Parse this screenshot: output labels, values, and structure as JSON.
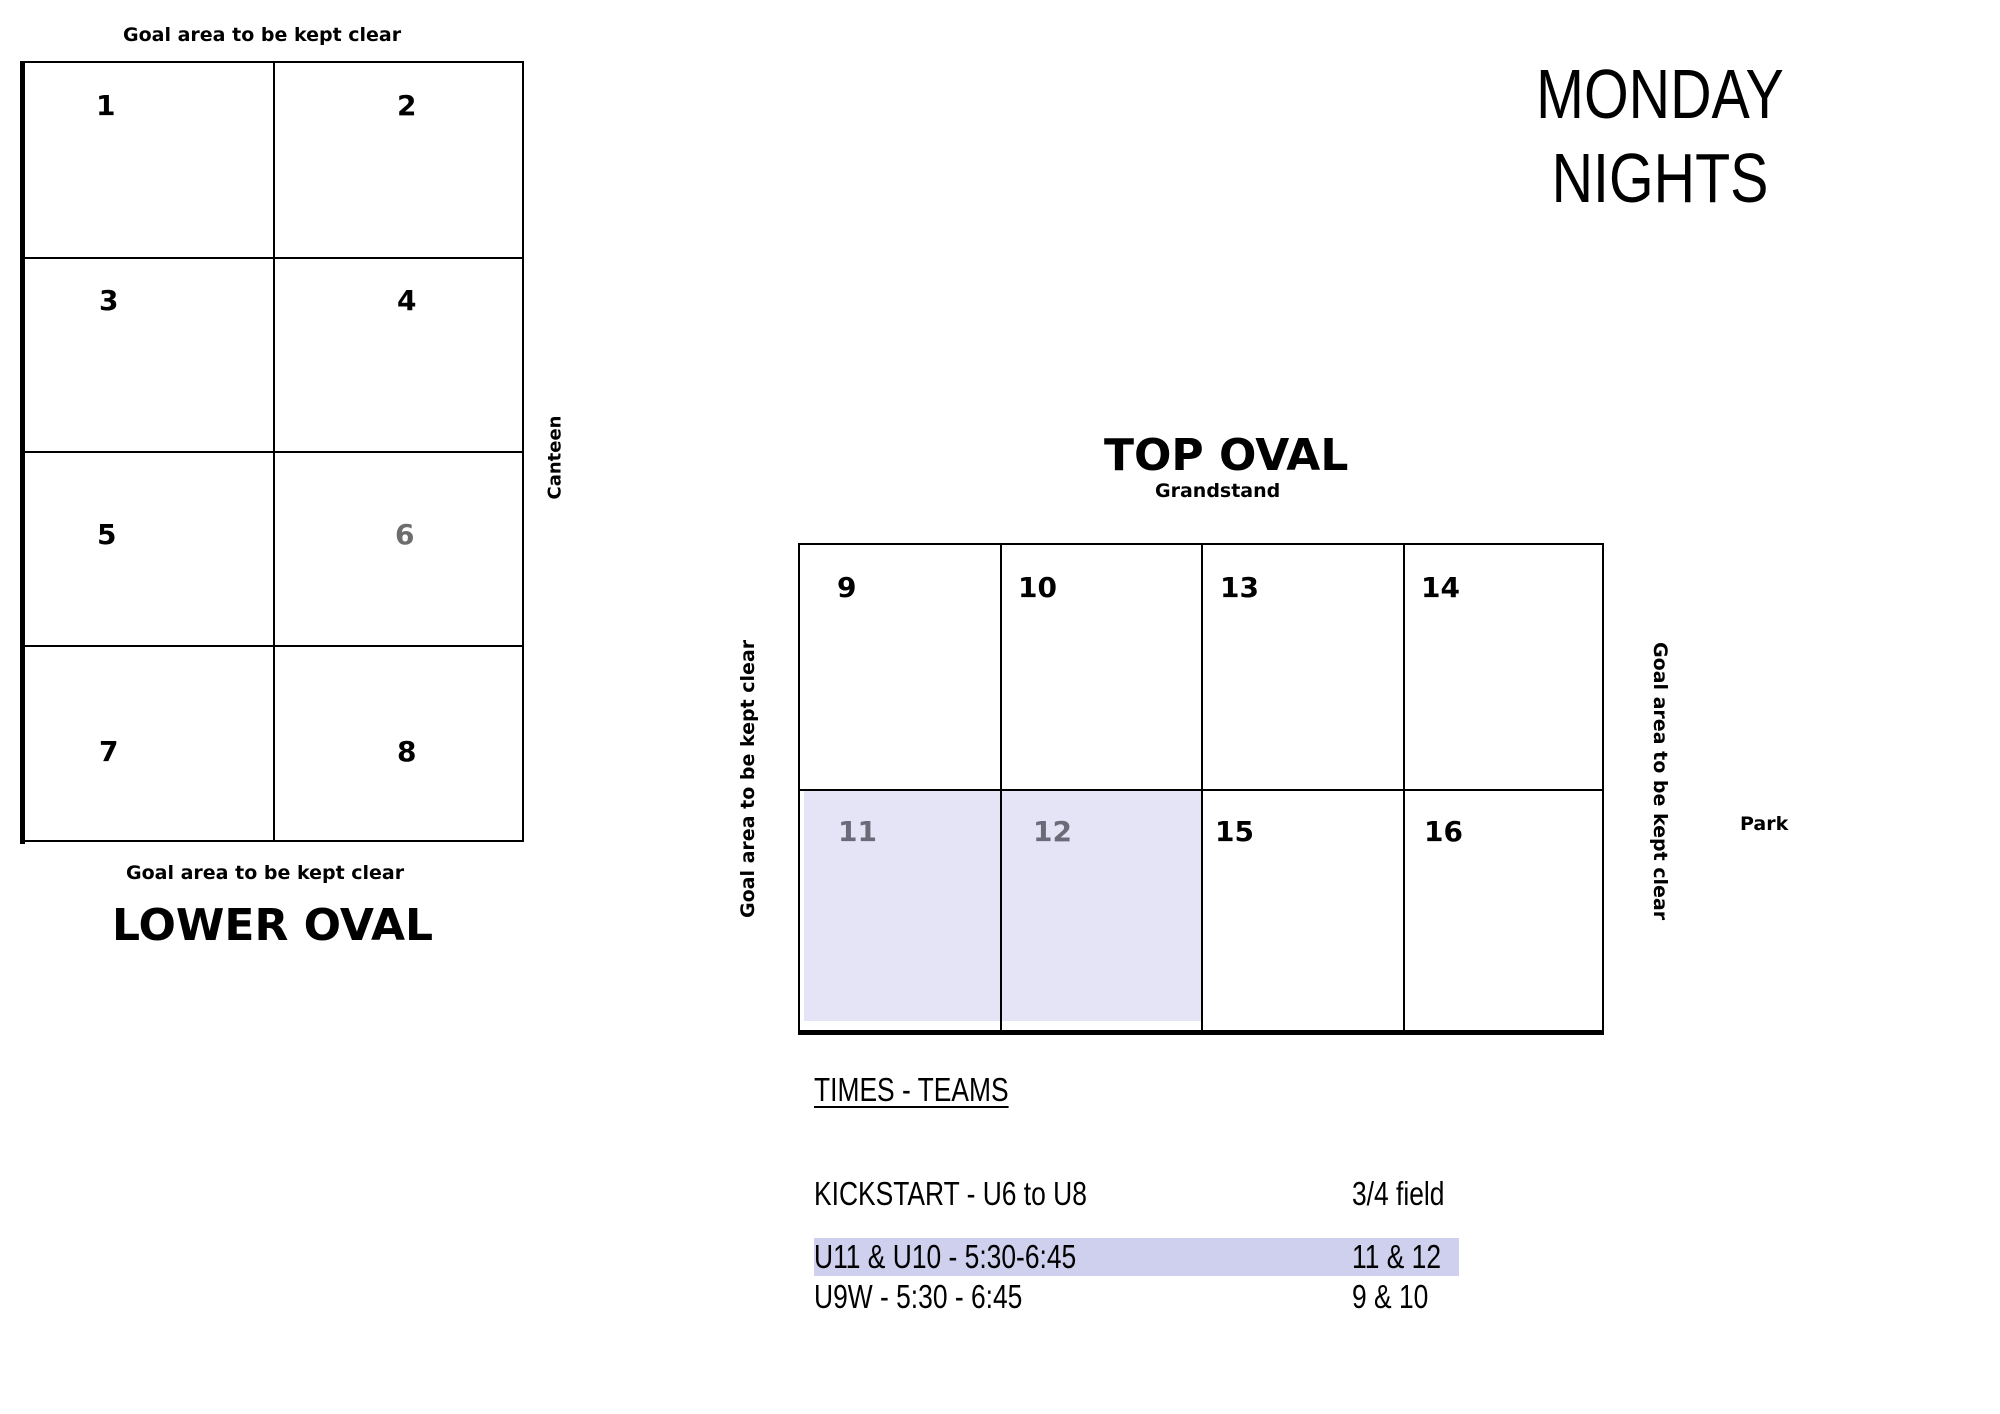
{
  "header": {
    "title_line1": "MONDAY",
    "title_line2": "NIGHTS"
  },
  "lower_oval": {
    "name": "LOWER OVAL",
    "top_note": "Goal area to be kept clear",
    "bottom_note": "Goal area to be kept clear",
    "side_label": "Canteen",
    "fields": [
      "1",
      "2",
      "3",
      "4",
      "5",
      "6",
      "7",
      "8"
    ]
  },
  "top_oval": {
    "name": "TOP OVAL",
    "subtitle": "Grandstand",
    "left_note": "Goal area to be kept clear",
    "right_note": "Goal area to be kept clear",
    "side_label": "Park",
    "fields": [
      "9",
      "10",
      "13",
      "14",
      "11",
      "12",
      "15",
      "16"
    ],
    "highlight_color": "#e4e4f6"
  },
  "schedule": {
    "heading": "TIMES - TEAMS",
    "rows": [
      {
        "team": "KICKSTART - U6 to U8",
        "field": "3/4 field",
        "highlight": false
      },
      {
        "team": "U11 & U10 - 5:30-6:45",
        "field": "11 & 12",
        "highlight": true
      },
      {
        "team": "U9W - 5:30 - 6:45",
        "field": "9 & 10",
        "highlight": false
      }
    ],
    "highlight_color": "#cfcfee"
  }
}
